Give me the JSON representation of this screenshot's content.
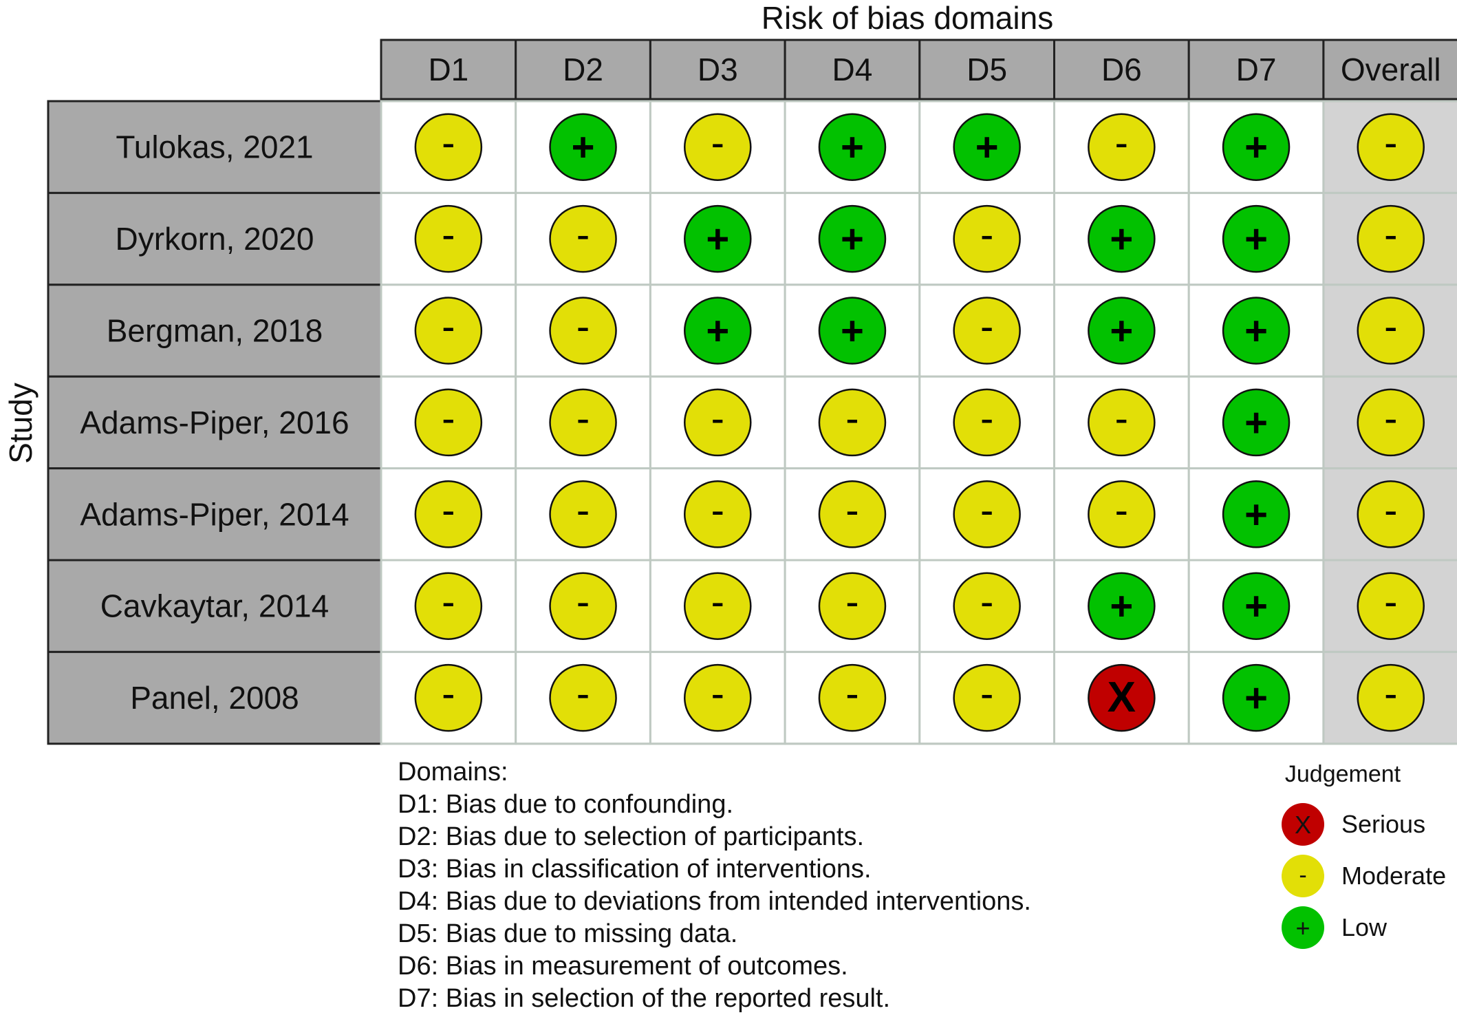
{
  "title": "Risk of bias domains",
  "y_axis_label": "Study",
  "colors": {
    "serious": "#C00000",
    "moderate": "#E2DF07",
    "low": "#02C100",
    "header_fill": "#A9A9A9",
    "cell_fill": "#FFFFFF",
    "overall_fill": "#D3D3D3",
    "grid_line": "#BFC9C2",
    "border": "#222222"
  },
  "chart_data": {
    "type": "table",
    "title": "Risk of bias domains",
    "row_label": "Study",
    "columns": [
      "D1",
      "D2",
      "D3",
      "D4",
      "D5",
      "D6",
      "D7",
      "Overall"
    ],
    "studies": [
      "Tulokas, 2021",
      "Dyrkorn, 2020",
      "Bergman, 2018",
      "Adams-Piper, 2016",
      "Adams-Piper, 2014",
      "Cavkaytar, 2014",
      "Panel, 2008"
    ],
    "judgements": [
      [
        "Moderate",
        "Low",
        "Moderate",
        "Low",
        "Low",
        "Moderate",
        "Low",
        "Moderate"
      ],
      [
        "Moderate",
        "Moderate",
        "Low",
        "Low",
        "Moderate",
        "Low",
        "Low",
        "Moderate"
      ],
      [
        "Moderate",
        "Moderate",
        "Low",
        "Low",
        "Moderate",
        "Low",
        "Low",
        "Moderate"
      ],
      [
        "Moderate",
        "Moderate",
        "Moderate",
        "Moderate",
        "Moderate",
        "Moderate",
        "Low",
        "Moderate"
      ],
      [
        "Moderate",
        "Moderate",
        "Moderate",
        "Moderate",
        "Moderate",
        "Moderate",
        "Low",
        "Moderate"
      ],
      [
        "Moderate",
        "Moderate",
        "Moderate",
        "Moderate",
        "Moderate",
        "Low",
        "Low",
        "Moderate"
      ],
      [
        "Moderate",
        "Moderate",
        "Moderate",
        "Moderate",
        "Moderate",
        "Serious",
        "Low",
        "Moderate"
      ]
    ],
    "symbols": {
      "Serious": "X",
      "Moderate": "-",
      "Low": "+"
    },
    "domains_title": "Domains:",
    "domains": [
      "D1: Bias due to confounding.",
      "D2: Bias due to selection of participants.",
      "D3: Bias in classification of interventions.",
      "D4: Bias due to deviations from intended interventions.",
      "D5: Bias due to missing data.",
      "D6: Bias in measurement of outcomes.",
      "D7: Bias in selection of the reported result."
    ],
    "legend": {
      "title": "Judgement",
      "items": [
        {
          "label": "Serious",
          "level": "Serious"
        },
        {
          "label": "Moderate",
          "level": "Moderate"
        },
        {
          "label": "Low",
          "level": "Low"
        }
      ]
    }
  }
}
